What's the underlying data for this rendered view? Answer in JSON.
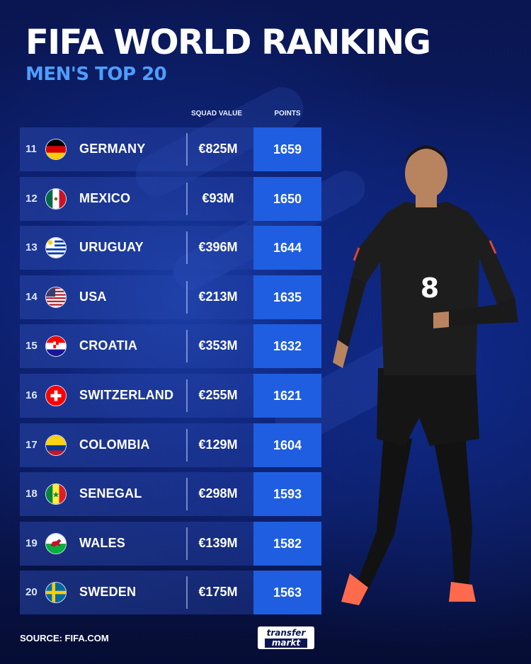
{
  "header": {
    "title": "FIFA WORLD RANKING",
    "subtitle": "MEN'S TOP 20"
  },
  "columns": {
    "squad_value": "SQUAD VALUE",
    "points": "POINTS"
  },
  "rows": [
    {
      "rank": "11",
      "country": "GERMANY",
      "value": "€825M",
      "points": "1659",
      "flag": "germany-flag"
    },
    {
      "rank": "12",
      "country": "MEXICO",
      "value": "€93M",
      "points": "1650",
      "flag": "mexico-flag"
    },
    {
      "rank": "13",
      "country": "URUGUAY",
      "value": "€396M",
      "points": "1644",
      "flag": "uruguay-flag"
    },
    {
      "rank": "14",
      "country": "USA",
      "value": "€213M",
      "points": "1635",
      "flag": "usa-flag"
    },
    {
      "rank": "15",
      "country": "CROATIA",
      "value": "€353M",
      "points": "1632",
      "flag": "croatia-flag"
    },
    {
      "rank": "16",
      "country": "SWITZERLAND",
      "value": "€255M",
      "points": "1621",
      "flag": "switzerland-flag"
    },
    {
      "rank": "17",
      "country": "COLOMBIA",
      "value": "€129M",
      "points": "1604",
      "flag": "colombia-flag"
    },
    {
      "rank": "18",
      "country": "SENEGAL",
      "value": "€298M",
      "points": "1593",
      "flag": "senegal-flag"
    },
    {
      "rank": "19",
      "country": "WALES",
      "value": "€139M",
      "points": "1582",
      "flag": "wales-flag"
    },
    {
      "rank": "20",
      "country": "SWEDEN",
      "value": "€175M",
      "points": "1563",
      "flag": "sweden-flag"
    }
  ],
  "footer": {
    "source": "SOURCE: FIFA.COM",
    "logo_line1": "transfer",
    "logo_line2": "markt"
  },
  "player": {
    "shirt_number": "8"
  },
  "colors": {
    "accent": "#4f9dff",
    "points_bg": "#1f5ee0",
    "background": "#0b1d6b"
  }
}
